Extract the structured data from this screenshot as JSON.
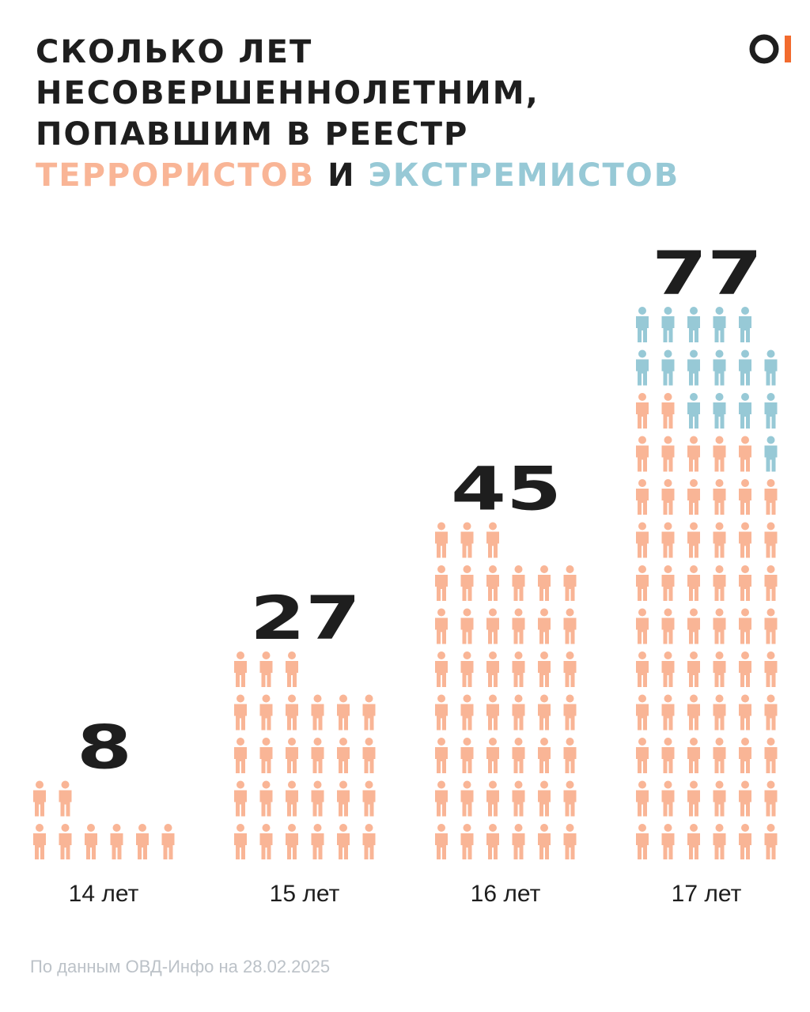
{
  "title": {
    "line1": "СКОЛЬКО ЛЕТ",
    "line2": "НЕСОВЕРШЕННОЛЕТНИМ,",
    "line3": "ПОПАВШИМ В РЕЕСТР",
    "terrorists": "ТЕРРОРИСТОВ",
    "conj": "И",
    "extremists": "ЭКСТРЕМИСТОВ"
  },
  "colors": {
    "terrorists": "#f9b596",
    "extremists": "#97c9d6",
    "text": "#1e1e1e",
    "logo_accent": "#f26b2e"
  },
  "logo": {
    "icon": "ovd-info-logo-icon"
  },
  "chart_data": {
    "type": "bar",
    "categories": [
      "14 лет",
      "15 лет",
      "16 лет",
      "17 лет"
    ],
    "totals": [
      8,
      27,
      45,
      77
    ],
    "series": [
      {
        "name": "ТЕРРОРИСТОВ",
        "values": [
          8,
          27,
          45,
          61
        ]
      },
      {
        "name": "ЭКСТРЕМИСТОВ",
        "values": [
          0,
          0,
          0,
          16
        ]
      }
    ]
  },
  "footer": "По данным ОВД-Инфо на 28.02.2025"
}
